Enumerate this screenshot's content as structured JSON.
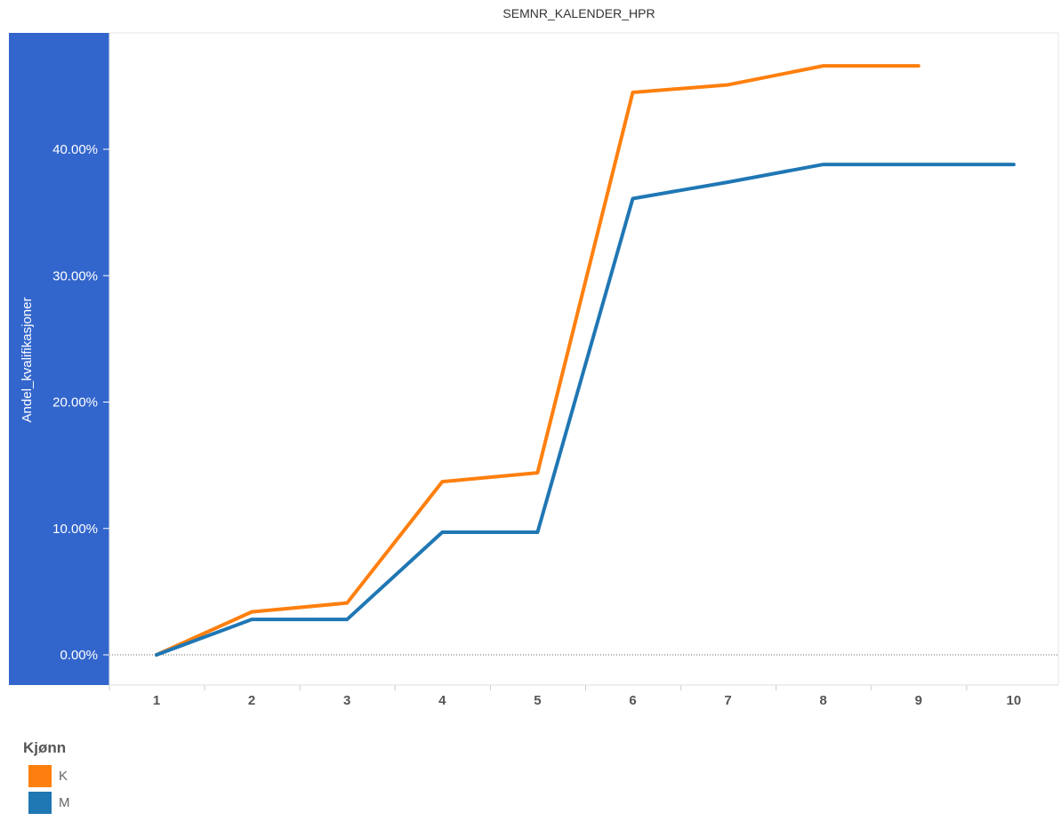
{
  "chart_data": {
    "type": "line",
    "title": "SEMNR_KALENDER_HPR",
    "xlabel": "",
    "ylabel": "Andel_kvalifikasjoner",
    "x": [
      1,
      2,
      3,
      4,
      5,
      6,
      7,
      8,
      9,
      10
    ],
    "x_tick_labels": [
      "1",
      "2",
      "3",
      "4",
      "5",
      "6",
      "7",
      "8",
      "9",
      "10"
    ],
    "ylim": [
      0,
      0.46
    ],
    "y_tick_values": [
      0,
      0.1,
      0.2,
      0.3,
      0.4
    ],
    "y_tick_labels": [
      "0.00%",
      "10.00%",
      "20.00%",
      "30.00%",
      "40.00%"
    ],
    "series": [
      {
        "name": "K",
        "color": "#ff7f0e",
        "values": [
          0.0,
          0.034,
          0.041,
          0.137,
          0.144,
          0.445,
          0.451,
          0.466,
          0.466,
          null
        ]
      },
      {
        "name": "M",
        "color": "#1f77b4",
        "values": [
          0.0,
          0.028,
          0.028,
          0.097,
          0.097,
          0.361,
          0.374,
          0.388,
          0.388,
          0.388
        ]
      }
    ],
    "grid": false,
    "legend_position": "bottom-left",
    "axis_panel_color": "#3366cc"
  },
  "legend": {
    "title": "Kjønn",
    "items": [
      {
        "label": "K",
        "color": "#ff7f0e"
      },
      {
        "label": "M",
        "color": "#1f77b4"
      }
    ]
  }
}
